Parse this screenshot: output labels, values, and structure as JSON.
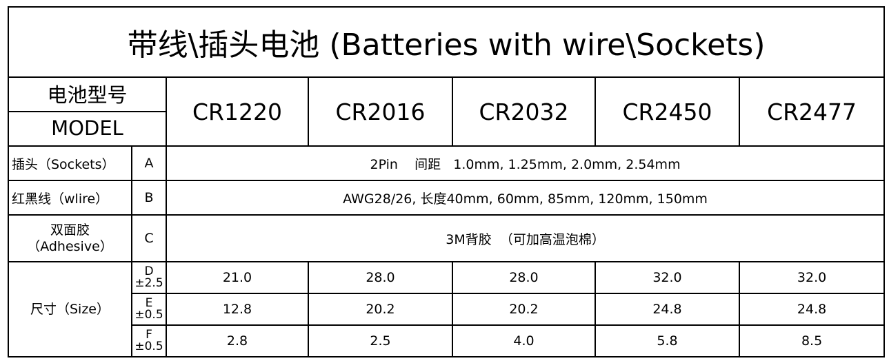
{
  "title": "带线\\插头电池 (Batteries with wire\\Sockets)",
  "header": {
    "label_cn": "电池型号",
    "label_en": "MODEL",
    "models": [
      "CR1220",
      "CR2016",
      "CR2032",
      "CR2450",
      "CR2477"
    ]
  },
  "rows": [
    {
      "label": "插头（Sockets）",
      "code": "A",
      "value": "2Pin    间距   1.0mm, 1.25mm, 2.0mm, 2.54mm"
    },
    {
      "label": "红黑线（wlire）",
      "code": "B",
      "value": "AWG28/26, 长度40mm, 60mm, 85mm, 120mm, 150mm"
    },
    {
      "label_cn": "双面胶",
      "label_en": "（Adhesive）",
      "code": "C",
      "value": "3M背胶  （可加高温泡棉）"
    }
  ],
  "size": {
    "label": "尺寸（Size）",
    "rows": [
      {
        "code": "D",
        "tol": "±2.5",
        "values": [
          "21.0",
          "28.0",
          "28.0",
          "32.0",
          "32.0"
        ]
      },
      {
        "code": "E",
        "tol": "±0.5",
        "values": [
          "12.8",
          "20.2",
          "20.2",
          "24.8",
          "24.8"
        ]
      },
      {
        "code": "F",
        "tol": "±0.5",
        "values": [
          "2.8",
          "2.5",
          "4.0",
          "5.8",
          "8.5"
        ]
      }
    ]
  }
}
